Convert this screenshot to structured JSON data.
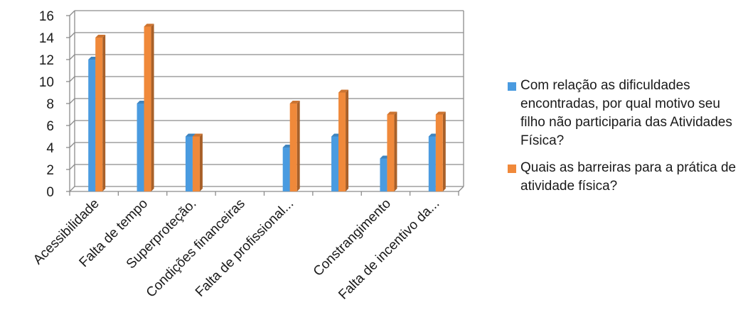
{
  "chart_data": {
    "type": "bar",
    "title": "",
    "xlabel": "",
    "ylabel": "",
    "ylim": [
      0,
      16
    ],
    "yticks": [
      0,
      2,
      4,
      6,
      8,
      10,
      12,
      14,
      16
    ],
    "grid": true,
    "legend_position": "right",
    "categories": [
      "Acessibilidade",
      "Falta de tempo",
      "Superproteção.",
      "Condições financeiras",
      "Falta de profissional...",
      "",
      "Constrangimento",
      "Falta de incentivo da..."
    ],
    "series": [
      {
        "name": "Com relação as dificuldades encontradas, por qual motivo seu filho não participaria das Atividades Física?",
        "color": "#4a9be0",
        "values": [
          12,
          8,
          5,
          0,
          4,
          5,
          3,
          5
        ]
      },
      {
        "name": "Quais as barreiras para a prática de atividade física?",
        "color": "#f0893a",
        "values": [
          14,
          15,
          5,
          0,
          8,
          9,
          7,
          7
        ]
      }
    ]
  }
}
